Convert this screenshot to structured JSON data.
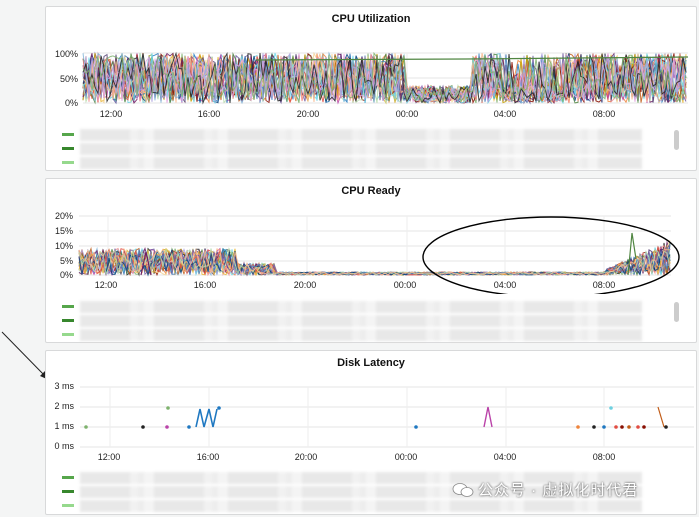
{
  "panels": [
    {
      "title": "CPU Utilization",
      "y_ticks": [
        "100%",
        "50%",
        "0%"
      ],
      "x_ticks": [
        "12:00",
        "16:00",
        "20:00",
        "00:00",
        "04:00",
        "08:00"
      ]
    },
    {
      "title": "CPU Ready",
      "y_ticks": [
        "20%",
        "15%",
        "10%",
        "5%",
        "0%"
      ],
      "x_ticks": [
        "12:00",
        "16:00",
        "20:00",
        "00:00",
        "04:00",
        "08:00"
      ]
    },
    {
      "title": "Disk Latency",
      "y_ticks": [
        "3 ms",
        "2 ms",
        "1 ms",
        "0 ms"
      ],
      "x_ticks": [
        "12:00",
        "16:00",
        "20:00",
        "00:00",
        "04:00",
        "08:00"
      ]
    }
  ],
  "watermark": "公众号 · 虚拟化时代君",
  "colors": {
    "legend_green": "#56a64b",
    "annotation_ellipse": "#000000",
    "panel_border": "#d8d9da"
  }
}
